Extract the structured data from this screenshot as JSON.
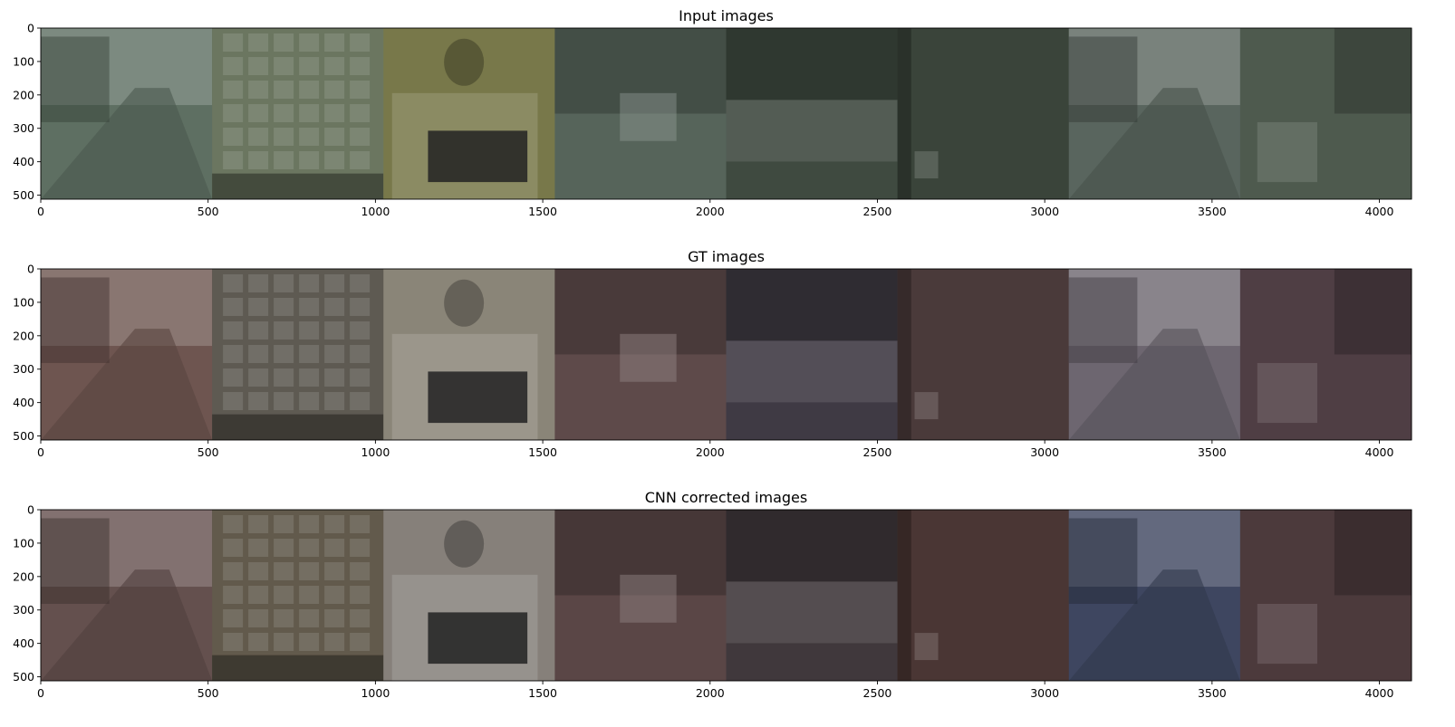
{
  "chart_data": [
    {
      "type": "image",
      "title": "Input images",
      "xlim": [
        0,
        4096
      ],
      "ylim": [
        512,
        0
      ],
      "xticks": [
        0,
        500,
        1000,
        1500,
        2000,
        2500,
        3000,
        3500,
        4000
      ],
      "yticks": [
        0,
        100,
        200,
        300,
        400,
        500
      ],
      "tiles": [
        {
          "scene": "street",
          "tint": "#5e6f62"
        },
        {
          "scene": "glass-block-window",
          "tint": "#6b7660"
        },
        {
          "scene": "person-with-colorchecker",
          "tint": "#78784a"
        },
        {
          "scene": "park-kiosk",
          "tint": "#56645a"
        },
        {
          "scene": "fence-trees",
          "tint": "#3f4a40"
        },
        {
          "scene": "brick-wall-colorchecker",
          "tint": "#3a443a"
        },
        {
          "scene": "street-cyclist",
          "tint": "#59655e"
        },
        {
          "scene": "indoor-sofa",
          "tint": "#4e5a4e"
        }
      ]
    },
    {
      "type": "image",
      "title": "GT images",
      "xlim": [
        0,
        4096
      ],
      "ylim": [
        512,
        0
      ],
      "xticks": [
        0,
        500,
        1000,
        1500,
        2000,
        2500,
        3000,
        3500,
        4000
      ],
      "yticks": [
        0,
        100,
        200,
        300,
        400,
        500
      ],
      "tiles": [
        {
          "scene": "street",
          "tint": "#6e5550"
        },
        {
          "scene": "glass-block-window",
          "tint": "#5e5a52"
        },
        {
          "scene": "person-with-colorchecker",
          "tint": "#8a8578"
        },
        {
          "scene": "park-kiosk",
          "tint": "#5e4a4a"
        },
        {
          "scene": "fence-trees",
          "tint": "#3f3a44"
        },
        {
          "scene": "brick-wall-colorchecker",
          "tint": "#4a3a3a"
        },
        {
          "scene": "street-cyclist",
          "tint": "#6d6670"
        },
        {
          "scene": "indoor-sofa",
          "tint": "#4f3e44"
        }
      ]
    },
    {
      "type": "image",
      "title": "CNN corrected images",
      "xlim": [
        0,
        4096
      ],
      "ylim": [
        512,
        0
      ],
      "xticks": [
        0,
        500,
        1000,
        1500,
        2000,
        2500,
        3000,
        3500,
        4000
      ],
      "yticks": [
        0,
        100,
        200,
        300,
        400,
        500
      ],
      "tiles": [
        {
          "scene": "street",
          "tint": "#64504e"
        },
        {
          "scene": "glass-block-window",
          "tint": "#625a4c"
        },
        {
          "scene": "person-with-colorchecker",
          "tint": "#86807a"
        },
        {
          "scene": "park-kiosk",
          "tint": "#5a4646"
        },
        {
          "scene": "fence-trees",
          "tint": "#40383c"
        },
        {
          "scene": "brick-wall-colorchecker",
          "tint": "#4a3634"
        },
        {
          "scene": "street-cyclist",
          "tint": "#3e4660"
        },
        {
          "scene": "indoor-sofa",
          "tint": "#4c3a3c"
        }
      ]
    }
  ]
}
